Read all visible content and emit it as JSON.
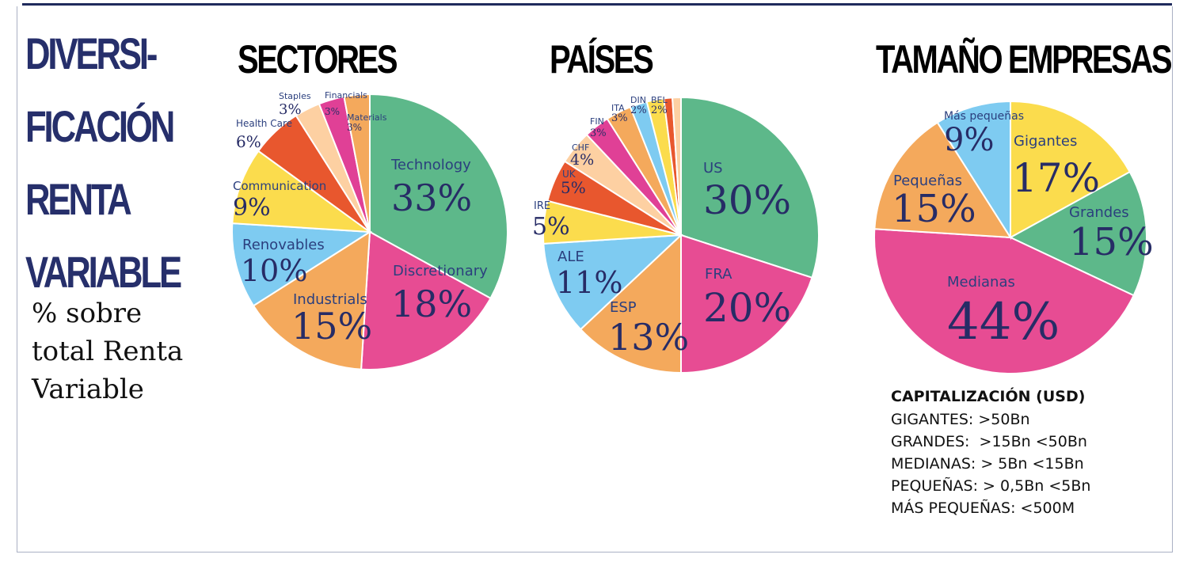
{
  "colors": {
    "green": "#5db88a",
    "pink": "#e74c93",
    "orange": "#f4a95c",
    "blue": "#7ecbf1",
    "yellow": "#fbdc4d",
    "red": "#e8572e",
    "peach": "#fdd0a2",
    "magenta": "#e04096",
    "title_navy": "#262f6b"
  },
  "main_title": [
    "DIVERSI-",
    "FICACIÓN",
    "RENTA",
    "VARIABLE"
  ],
  "subtitle": [
    "% sobre",
    "total Renta",
    "Variable"
  ],
  "chart_data": [
    {
      "type": "pie",
      "title": "SECTORES",
      "slices": [
        {
          "label": "Technology",
          "value": 33,
          "display": "33%",
          "color": "#5db88a"
        },
        {
          "label": "Discretionary",
          "value": 18,
          "display": "18%",
          "color": "#e74c93"
        },
        {
          "label": "Industrials",
          "value": 15,
          "display": "15%",
          "color": "#f4a95c"
        },
        {
          "label": "Renovables",
          "value": 10,
          "display": "10%",
          "color": "#7ecbf1"
        },
        {
          "label": "Communication",
          "value": 9,
          "display": "9%",
          "color": "#fbdc4d"
        },
        {
          "label": "Health Care",
          "value": 6,
          "display": "6%",
          "color": "#e8572e"
        },
        {
          "label": "Staples",
          "value": 3,
          "display": "3%",
          "color": "#fdd0a2"
        },
        {
          "label": "Financials",
          "value": 3,
          "display": "3%",
          "color": "#e04096"
        },
        {
          "label": "Materials",
          "value": 3,
          "display": "3%",
          "color": "#f4a95c"
        }
      ]
    },
    {
      "type": "pie",
      "title": "PAÍSES",
      "slices": [
        {
          "label": "US",
          "value": 30,
          "display": "30%",
          "color": "#5db88a"
        },
        {
          "label": "FRA",
          "value": 20,
          "display": "20%",
          "color": "#e74c93"
        },
        {
          "label": "ESP",
          "value": 13,
          "display": "13%",
          "color": "#f4a95c"
        },
        {
          "label": "ALE",
          "value": 11,
          "display": "11%",
          "color": "#7ecbf1"
        },
        {
          "label": "IRE",
          "value": 5,
          "display": "5%",
          "color": "#fbdc4d"
        },
        {
          "label": "UK",
          "value": 5,
          "display": "5%",
          "color": "#e8572e"
        },
        {
          "label": "CHF",
          "value": 4,
          "display": "4%",
          "color": "#fdd0a2"
        },
        {
          "label": "FIN",
          "value": 3,
          "display": "3%",
          "color": "#e04096"
        },
        {
          "label": "ITA",
          "value": 3,
          "display": "3%",
          "color": "#f4a95c"
        },
        {
          "label": "DIN",
          "value": 2,
          "display": "2%",
          "color": "#7ecbf1"
        },
        {
          "label": "BEL",
          "value": 2,
          "display": "2%",
          "color": "#fbdc4d"
        },
        {
          "label": "",
          "value": 1,
          "display": "",
          "color": "#e8572e"
        },
        {
          "label": "",
          "value": 1,
          "display": "",
          "color": "#fdd0a2"
        }
      ]
    },
    {
      "type": "pie",
      "title": "TAMAÑO EMPRESAS",
      "slices": [
        {
          "label": "Gigantes",
          "value": 17,
          "display": "17%",
          "color": "#fbdc4d"
        },
        {
          "label": "Grandes",
          "value": 15,
          "display": "15%",
          "color": "#5db88a"
        },
        {
          "label": "Medianas",
          "value": 44,
          "display": "44%",
          "color": "#e74c93"
        },
        {
          "label": "Pequeñas",
          "value": 15,
          "display": "15%",
          "color": "#f4a95c"
        },
        {
          "label": "Más pequeñas",
          "value": 9,
          "display": "9%",
          "color": "#7ecbf1"
        }
      ]
    }
  ],
  "legend": {
    "title": "CAPITALIZACIÓN (USD)",
    "lines": [
      "GIGANTES: >50Bn",
      "GRANDES:  >15Bn <50Bn",
      "MEDIANAS: > 5Bn <15Bn",
      "PEQUEÑAS: > 0,5Bn <5Bn",
      "MÁS PEQUEÑAS: <500M"
    ]
  }
}
